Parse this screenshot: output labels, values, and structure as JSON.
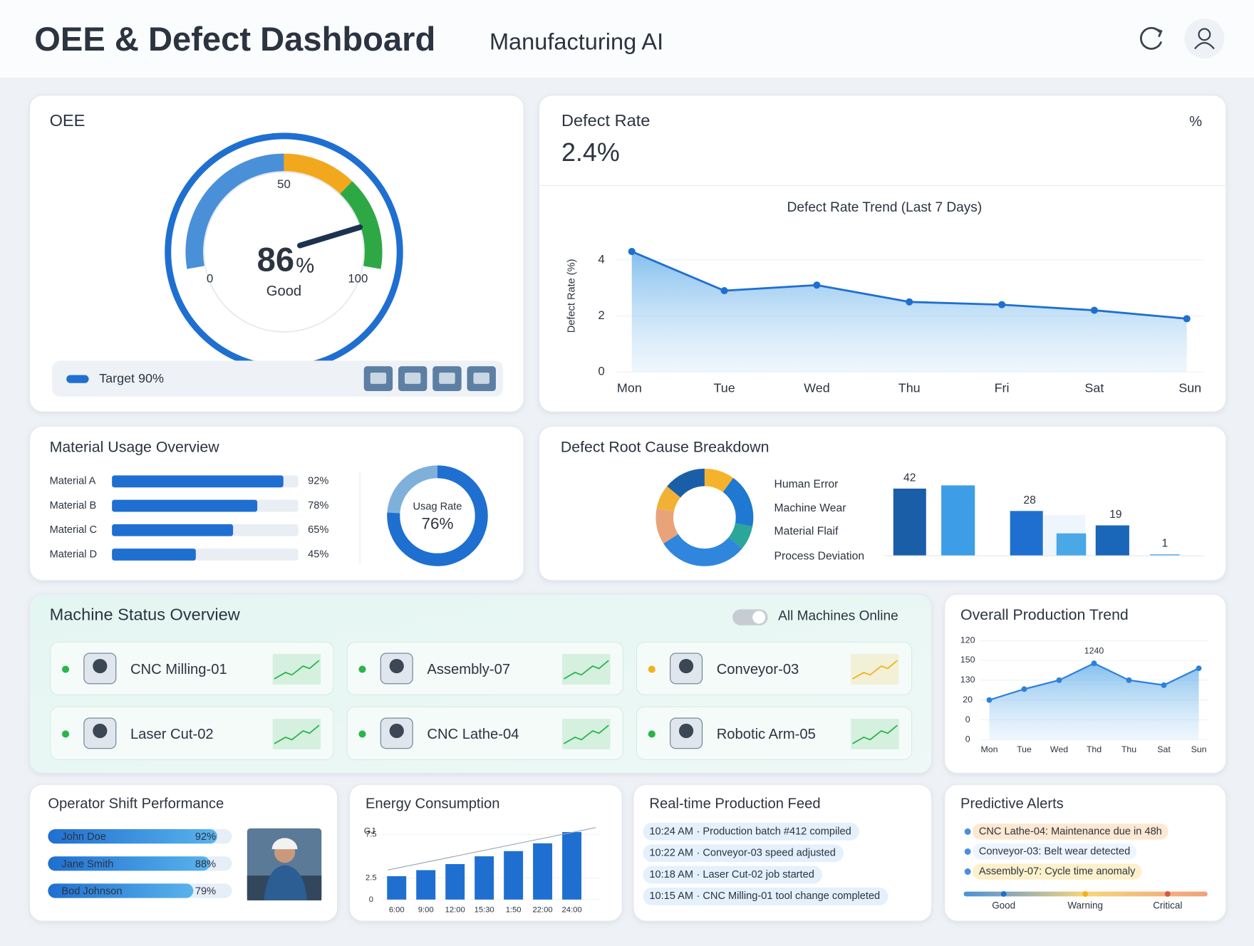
{
  "header": {
    "title": "OEE & Defect Dashboard",
    "subtitle": "Manufacturing AI"
  },
  "oee": {
    "title": "OEE",
    "type": "gauge",
    "value": 86,
    "unit": "%",
    "status": "Good",
    "lim": [
      0,
      100
    ],
    "ticks": [
      0,
      50,
      100
    ],
    "zones": [
      {
        "to": 50,
        "color": "#4a90d9"
      },
      {
        "to": 72,
        "color": "#f2a81d"
      },
      {
        "to": 100,
        "color": "#2ea844"
      }
    ],
    "target": "Target 90%"
  },
  "defect_rate": {
    "title": "Defect Rate",
    "value": "2.4%",
    "unit": "%",
    "chart": {
      "type": "line",
      "title": "Defect Rate Trend (Last 7 Days)",
      "y_label": "Defect Rate (%)",
      "categories": [
        "Mon",
        "Tue",
        "Wed",
        "Thu",
        "Fri",
        "Sat",
        "Sun"
      ],
      "values": [
        4.3,
        2.9,
        3.1,
        2.5,
        2.4,
        2.2,
        1.9
      ],
      "ylim": [
        0,
        4.5
      ],
      "yticks": [
        0,
        2,
        4
      ],
      "color": "#1f6fd1",
      "grid": true
    }
  },
  "material": {
    "title": "Material Usage Overview",
    "type": "bar",
    "categories": [
      "Material A",
      "Material B",
      "Material C",
      "Material D"
    ],
    "values": [
      92,
      78,
      65,
      45
    ],
    "value_labels": [
      "92%",
      "78%",
      "65%",
      "45%"
    ],
    "xlim": [
      0,
      100
    ],
    "color": "#1f6fd1",
    "donut": {
      "label": "Usag Rate",
      "value": 76,
      "value_label": "76%",
      "lim": [
        0,
        100
      ],
      "color": "#1f6fd1"
    }
  },
  "root_cause": {
    "title": "Defect Root Cause Breakdown",
    "legend": [
      "Human Error",
      "Machine Wear",
      "Material Flaif",
      "Process Deviation"
    ],
    "donut": {
      "type": "pie",
      "values": [
        10,
        18,
        8,
        30,
        12,
        8,
        14
      ],
      "colors": [
        "#f5b32b",
        "#1f78d1",
        "#2aa69a",
        "#2f86dc",
        "#e9a378",
        "#f2b134",
        "#1a5ea8"
      ]
    },
    "bars": {
      "type": "bar",
      "values": [
        42,
        44,
        28,
        14,
        19,
        1
      ],
      "value_labels": [
        "42",
        null,
        "28",
        null,
        "19",
        "1"
      ],
      "colors": [
        "#1a5ea8",
        "#3d9de6",
        "#1f6fd1",
        "#4aa8e6",
        "#1a66b8",
        "#6db8ec"
      ],
      "ylim": [
        0,
        45
      ]
    }
  },
  "machines": {
    "title": "Machine Status Overview",
    "status": "All Machines Online",
    "items": [
      {
        "name": "CNC Milling-01",
        "status_color": "#2bb44a"
      },
      {
        "name": "Assembly-07",
        "status_color": "#2bb44a"
      },
      {
        "name": "Conveyor-03",
        "status_color": "#f2b21b"
      },
      {
        "name": "Laser Cut-02",
        "status_color": "#2bb44a"
      },
      {
        "name": "CNC Lathe-04",
        "status_color": "#2bb44a"
      },
      {
        "name": "Robotic Arm-05",
        "status_color": "#2bb44a"
      }
    ]
  },
  "production": {
    "type": "line",
    "title": "Overall Production Trend",
    "categories": [
      "Mon",
      "Tue",
      "Wed",
      "Thd",
      "Thu",
      "Sat",
      "Sun"
    ],
    "values": [
      40,
      51,
      60,
      77,
      60,
      55,
      72
    ],
    "ylim": [
      0,
      100
    ],
    "y_labels": [
      "120",
      "150",
      "130",
      "20",
      "0",
      "0"
    ],
    "annotation": "1240",
    "color": "#2f80d8"
  },
  "operators": {
    "title": "Operator Shift Performance",
    "xlim": [
      0,
      100
    ],
    "items": [
      {
        "name": "John Doe",
        "value": 92,
        "label": "92%"
      },
      {
        "name": "Jane Smith",
        "value": 88,
        "label": "88%"
      },
      {
        "name": "Bod Johnson",
        "value": 79,
        "label": "79%"
      }
    ]
  },
  "energy": {
    "type": "bar",
    "title": "Energy Consumption",
    "y_label": "GJ",
    "categories": [
      "6:00",
      "9:00",
      "12:00",
      "15:30",
      "1:50",
      "22:00",
      "24:00"
    ],
    "values": [
      2.7,
      3.4,
      4.1,
      5.0,
      5.6,
      6.5,
      7.8
    ],
    "ylim": [
      0,
      8.5
    ],
    "yticks": [
      0,
      2.5,
      7.5
    ],
    "color": "#1f6fd1"
  },
  "feed": {
    "title": "Real-time Production Feed",
    "items": [
      {
        "time": "10:24 AM",
        "text": "· Production batch #412 compiled"
      },
      {
        "time": "10:22 AM",
        "text": "· Conveyor-03 speed adjusted"
      },
      {
        "time": "10:18 AM",
        "text": "· Laser Cut-02 job started"
      },
      {
        "time": "10:15 AM",
        "text": "· CNC Milling-01 tool change completed"
      }
    ]
  },
  "alerts": {
    "title": "Predictive Alerts",
    "items": [
      {
        "text": "CNC Lathe-04: Maintenance due in 48h",
        "color": "#fde8d2"
      },
      {
        "text": "Conveyor-03: Belt wear detected",
        "color": "#eef5fc"
      },
      {
        "text": "Assembly-07: Cycle time anomaly",
        "color": "#fdf1cc"
      }
    ],
    "scale": [
      "Good",
      "Warning",
      "Critical"
    ]
  }
}
